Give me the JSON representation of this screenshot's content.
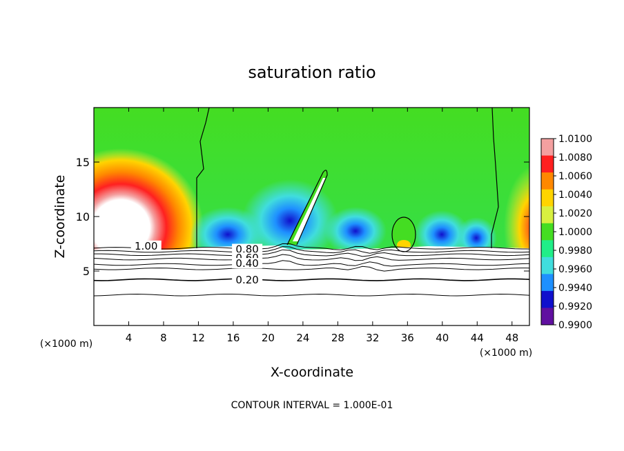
{
  "chart_data": {
    "type": "heatmap",
    "title": "saturation ratio",
    "xlabel": "X-coordinate",
    "ylabel": "Z-coordinate",
    "x_unit_left": "(×1000 m)",
    "x_unit_right": "(×1000 m)",
    "x_ticks": [
      4,
      8,
      12,
      16,
      20,
      24,
      28,
      32,
      36,
      40,
      44,
      48
    ],
    "y_ticks": [
      5,
      10,
      15
    ],
    "xlim": [
      0,
      50
    ],
    "ylim": [
      0,
      20
    ],
    "footnote": "CONTOUR INTERVAL = 1.000E-01",
    "colorbar": {
      "labels": [
        "1.0100",
        "1.0080",
        "1.0060",
        "1.0040",
        "1.0020",
        "1.0000",
        "0.9980",
        "0.9960",
        "0.9940",
        "0.9920",
        "0.9900"
      ],
      "colors": [
        "#f4a0a0",
        "#ff2020",
        "#ff8800",
        "#ffd400",
        "#d8f040",
        "#44dd22",
        "#20ee88",
        "#40dddd",
        "#1e90ff",
        "#1010cc",
        "#6010a0"
      ]
    },
    "contour_labels": [
      {
        "text": "1.00",
        "x": 6.0,
        "y": 7.1
      },
      {
        "text": "0.80",
        "x": 17.6,
        "y": 6.8
      },
      {
        "text": "0.60",
        "x": 17.6,
        "y": 6.0
      },
      {
        "text": "0.40",
        "x": 17.6,
        "y": 5.5
      },
      {
        "text": "0.20",
        "x": 17.6,
        "y": 4.0
      }
    ]
  }
}
